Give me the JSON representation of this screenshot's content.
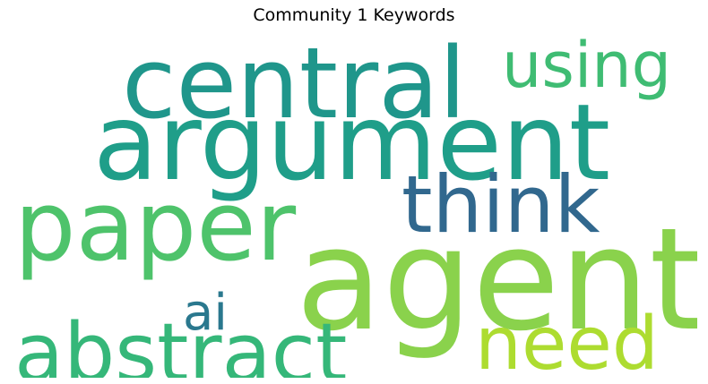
{
  "title": "Community 1 Keywords",
  "words": {
    "agent": {
      "text": "agent",
      "color": "#8ad24c"
    },
    "argument": {
      "text": "argument",
      "color": "#1f9e89"
    },
    "central": {
      "text": "central",
      "color": "#1f968b"
    },
    "paper": {
      "text": "paper",
      "color": "#4ec36b"
    },
    "abstract": {
      "text": "abstract",
      "color": "#35b779"
    },
    "think": {
      "text": "think",
      "color": "#31688e"
    },
    "need": {
      "text": "need",
      "color": "#addc30"
    },
    "using": {
      "text": "using",
      "color": "#3fbc73"
    },
    "ai": {
      "text": "ai",
      "color": "#2a788e"
    }
  }
}
